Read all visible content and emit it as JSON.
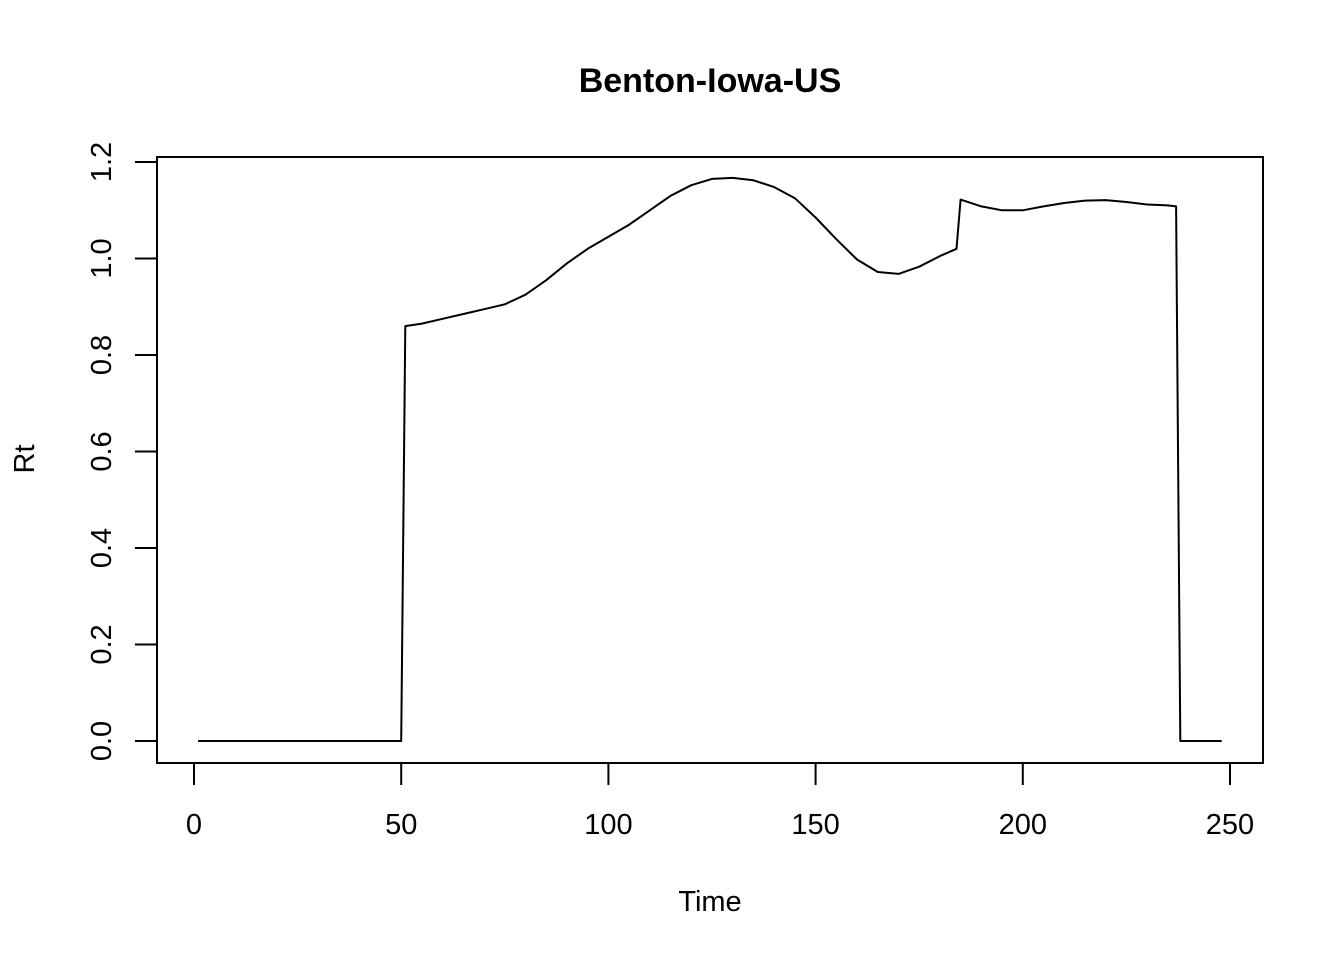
{
  "chart_data": {
    "type": "line",
    "title": "Benton-Iowa-US",
    "xlabel": "Time",
    "ylabel": "Rt",
    "xlim": [
      0,
      250
    ],
    "ylim": [
      0,
      1.2
    ],
    "x_ticks": [
      0,
      50,
      100,
      150,
      200,
      250
    ],
    "x_tick_labels": [
      "0",
      "50",
      "100",
      "150",
      "200",
      "250"
    ],
    "y_ticks": [
      0.0,
      0.2,
      0.4,
      0.6,
      0.8,
      1.0,
      1.2
    ],
    "y_tick_labels": [
      "0.0",
      "0.2",
      "0.4",
      "0.6",
      "0.8",
      "1.0",
      "1.2"
    ],
    "grid": false,
    "line_color": "#000000",
    "series": [
      {
        "x": [
          1,
          50,
          51,
          55,
          60,
          65,
          70,
          75,
          80,
          85,
          90,
          95,
          100,
          105,
          110,
          115,
          120,
          125,
          130,
          135,
          140,
          145,
          150,
          155,
          160,
          165,
          170,
          175,
          180,
          184,
          185,
          190,
          195,
          200,
          205,
          210,
          215,
          220,
          225,
          230,
          235,
          237,
          238,
          248
        ],
        "y": [
          0,
          0,
          0.86,
          0.865,
          0.875,
          0.885,
          0.895,
          0.905,
          0.925,
          0.955,
          0.99,
          1.02,
          1.045,
          1.07,
          1.1,
          1.13,
          1.152,
          1.165,
          1.167,
          1.162,
          1.148,
          1.125,
          1.085,
          1.04,
          0.998,
          0.972,
          0.968,
          0.983,
          1.005,
          1.02,
          1.122,
          1.108,
          1.1,
          1.1,
          1.108,
          1.115,
          1.12,
          1.121,
          1.117,
          1.112,
          1.11,
          1.108,
          0,
          0
        ]
      }
    ]
  }
}
